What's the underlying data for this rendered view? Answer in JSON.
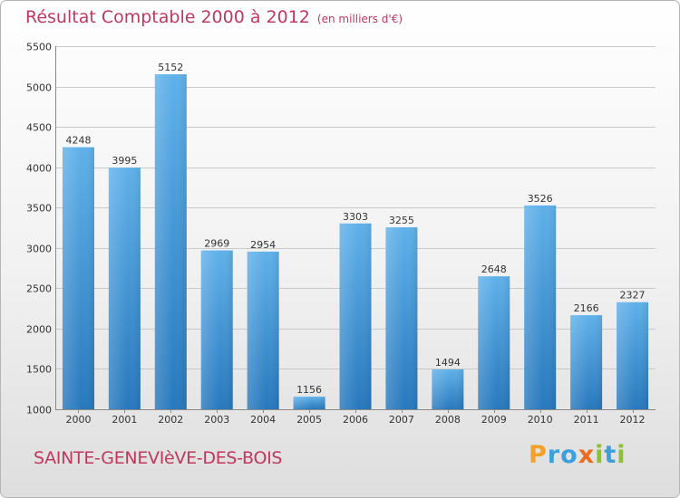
{
  "header": {
    "title": "Résultat Comptable 2000 à 2012",
    "unit": "(en milliers d'€)"
  },
  "footer": {
    "commune": "SAINTE-GENEVIèVE-DES-BOIS",
    "logo_letters": [
      {
        "ch": "P",
        "color": "#f2a12a"
      },
      {
        "ch": "r",
        "color": "#3da0dc"
      },
      {
        "ch": "o",
        "color": "#3da0dc"
      },
      {
        "ch": "x",
        "color": "#ec6c1f"
      },
      {
        "ch": "i",
        "color": "#8dbf3a"
      },
      {
        "ch": "t",
        "color": "#3da0dc"
      },
      {
        "ch": "i",
        "color": "#8dbf3a"
      }
    ]
  },
  "chart_data": {
    "type": "bar",
    "title": "Résultat Comptable 2000 à 2012",
    "subtitle": "(en milliers d'€)",
    "categories": [
      "2000",
      "2001",
      "2002",
      "2003",
      "2004",
      "2005",
      "2006",
      "2007",
      "2008",
      "2009",
      "2010",
      "2011",
      "2012"
    ],
    "values": [
      4248,
      3995,
      5152,
      2969,
      2954,
      1156,
      3303,
      3255,
      1494,
      2648,
      3526,
      2166,
      2327
    ],
    "ylim": [
      1000,
      5500
    ],
    "yticks": [
      1000,
      1500,
      2000,
      2500,
      3000,
      3500,
      4000,
      4500,
      5000,
      5500
    ],
    "grid": true,
    "bar_color": "#3a8fd6",
    "grid_color": "#c9c9c9"
  }
}
